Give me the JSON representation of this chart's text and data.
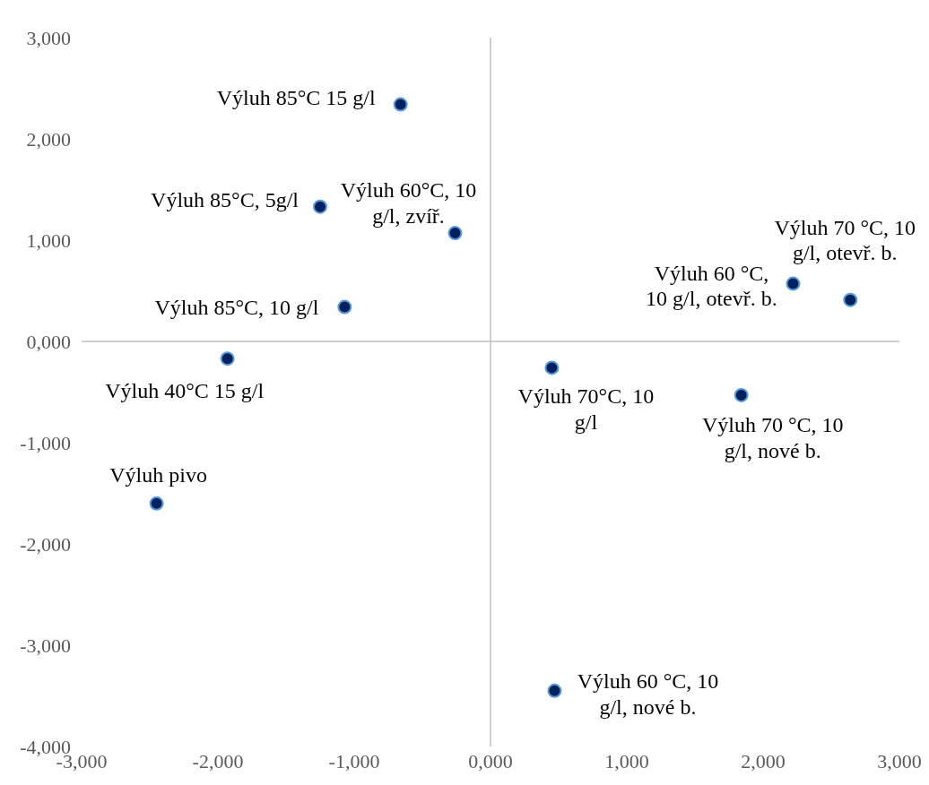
{
  "chart_data": {
    "type": "scatter",
    "x": [
      -0.66,
      -1.25,
      -0.26,
      -1.07,
      -1.93,
      -2.45,
      0.45,
      1.84,
      2.22,
      2.64,
      0.47
    ],
    "values": [
      2.34,
      1.33,
      1.07,
      0.34,
      -0.17,
      -1.6,
      -0.26,
      -0.53,
      0.57,
      0.41,
      -3.45
    ],
    "color": "#002060",
    "marker": "circle",
    "xlim": [
      -3,
      3
    ],
    "ylim": [
      -4,
      3
    ],
    "xticks": [
      {
        "value": -3,
        "label": "-3,000"
      },
      {
        "value": -2,
        "label": "-2,000"
      },
      {
        "value": -1,
        "label": "-1,000"
      },
      {
        "value": 0,
        "label": "0,000"
      },
      {
        "value": 1,
        "label": "1,000"
      },
      {
        "value": 2,
        "label": "2,000"
      },
      {
        "value": 3,
        "label": "3,000"
      }
    ],
    "yticks": [
      {
        "value": -4,
        "label": "-4,000"
      },
      {
        "value": -3,
        "label": "-3,000"
      },
      {
        "value": -2,
        "label": "-2,000"
      },
      {
        "value": -1,
        "label": "-1,000"
      },
      {
        "value": 0,
        "label": "0,000"
      },
      {
        "value": 1,
        "label": "1,000"
      },
      {
        "value": 2,
        "label": "2,000"
      },
      {
        "value": 3,
        "label": "3,000"
      }
    ],
    "annotations": [
      {
        "text": "Výluh 85°C 15 g/l",
        "x": -0.66,
        "y": 2.34
      },
      {
        "text": "Výluh 85°C, 5g/l",
        "x": -1.25,
        "y": 1.33
      },
      {
        "text": "Výluh 60°C, 10 g/l, zvíř.",
        "x": -0.26,
        "y": 1.07
      },
      {
        "text": "Výluh 85°C, 10 g/l",
        "x": -1.07,
        "y": 0.34
      },
      {
        "text": "Výluh 40°C 15 g/l",
        "x": -1.93,
        "y": -0.17
      },
      {
        "text": "Výluh pivo",
        "x": -2.45,
        "y": -1.6
      },
      {
        "text": "Výluh 70°C, 10 g/l",
        "x": 0.45,
        "y": -0.26
      },
      {
        "text": "Výluh 70 °C, 10 g/l, nové b.",
        "x": 1.84,
        "y": -0.53
      },
      {
        "text": "Výluh 60 °C, 10 g/l, otevř. b.",
        "x": 2.22,
        "y": 0.57
      },
      {
        "text": "Výluh 70 °C, 10 g/l, otevř. b.",
        "x": 2.64,
        "y": 0.41
      },
      {
        "text": "Výluh 60 °C, 10 g/l, nové b.",
        "x": 0.47,
        "y": -3.45
      }
    ]
  }
}
